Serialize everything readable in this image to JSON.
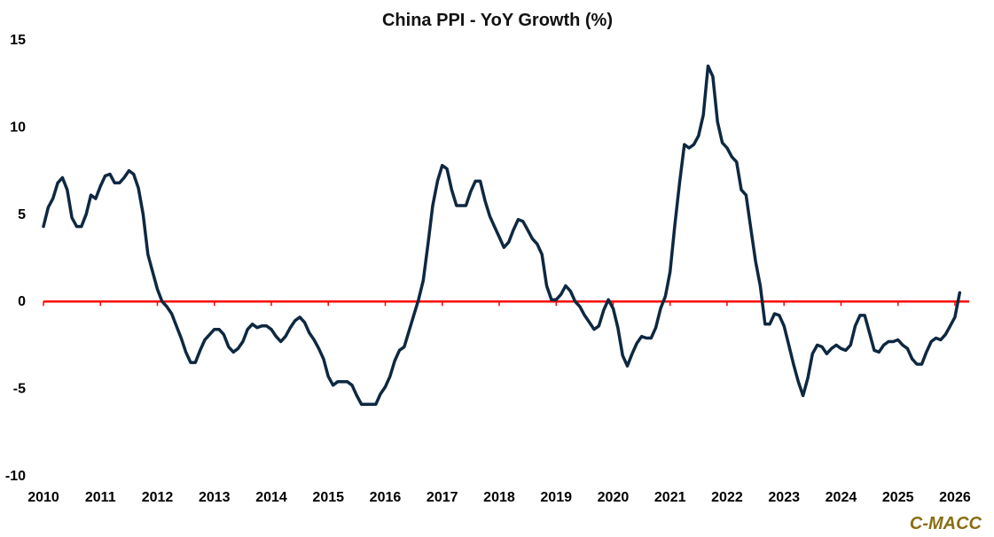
{
  "colors": {
    "series": "#0e2841",
    "zero_line": "#ff0000",
    "axis_tick": "#888888",
    "watermark": "#8a6d12"
  },
  "watermark": "C-MACC",
  "chart_data": {
    "type": "line",
    "title": "China PPI - YoY Growth (%)",
    "xlabel": "",
    "ylabel": "",
    "ylim": [
      -10,
      15
    ],
    "xlim": [
      2010.0,
      2026.25
    ],
    "y_ticks": [
      15,
      10,
      5,
      0,
      -5,
      -10
    ],
    "y_tick_labels": [
      "15",
      "10",
      "5",
      "0",
      "-5",
      "-10"
    ],
    "x_tick_labels": [
      "2010",
      "2011",
      "2012",
      "2013",
      "2014",
      "2015",
      "2016",
      "2017",
      "2018",
      "2019",
      "2020",
      "2021",
      "2022",
      "2023",
      "2024",
      "2025",
      "2026"
    ],
    "reference_line": 0,
    "series": [
      {
        "name": "China PPI YoY (%)",
        "start": 2010.0,
        "step": 0.083333,
        "values": [
          4.3,
          5.4,
          5.9,
          6.8,
          7.1,
          6.4,
          4.8,
          4.3,
          4.3,
          5.0,
          6.1,
          5.9,
          6.6,
          7.2,
          7.3,
          6.8,
          6.8,
          7.1,
          7.5,
          7.3,
          6.5,
          5.0,
          2.7,
          1.7,
          0.7,
          0.0,
          -0.3,
          -0.7,
          -1.4,
          -2.1,
          -2.9,
          -3.5,
          -3.5,
          -2.8,
          -2.2,
          -1.9,
          -1.6,
          -1.6,
          -1.9,
          -2.6,
          -2.9,
          -2.7,
          -2.3,
          -1.6,
          -1.3,
          -1.5,
          -1.4,
          -1.4,
          -1.6,
          -2.0,
          -2.3,
          -2.0,
          -1.5,
          -1.1,
          -0.9,
          -1.2,
          -1.8,
          -2.2,
          -2.7,
          -3.3,
          -4.3,
          -4.8,
          -4.6,
          -4.6,
          -4.6,
          -4.8,
          -5.4,
          -5.9,
          -5.9,
          -5.9,
          -5.9,
          -5.3,
          -4.9,
          -4.3,
          -3.4,
          -2.8,
          -2.6,
          -1.7,
          -0.8,
          0.1,
          1.2,
          3.3,
          5.5,
          6.9,
          7.8,
          7.6,
          6.4,
          5.5,
          5.5,
          5.5,
          6.3,
          6.9,
          6.9,
          5.8,
          4.9,
          4.3,
          3.7,
          3.1,
          3.4,
          4.1,
          4.7,
          4.6,
          4.1,
          3.6,
          3.3,
          2.7,
          0.9,
          0.1,
          0.1,
          0.4,
          0.9,
          0.6,
          0.0,
          -0.3,
          -0.8,
          -1.2,
          -1.6,
          -1.4,
          -0.5,
          0.1,
          -0.4,
          -1.5,
          -3.1,
          -3.7,
          -3.0,
          -2.4,
          -2.0,
          -2.1,
          -2.1,
          -1.5,
          -0.4,
          0.3,
          1.7,
          4.4,
          6.8,
          9.0,
          8.8,
          9.0,
          9.5,
          10.7,
          13.5,
          12.9,
          10.3,
          9.1,
          8.8,
          8.3,
          8.0,
          6.4,
          6.1,
          4.2,
          2.3,
          0.9,
          -1.3,
          -1.3,
          -0.7,
          -0.8,
          -1.4,
          -2.5,
          -3.6,
          -4.6,
          -5.4,
          -4.4,
          -3.0,
          -2.5,
          -2.6,
          -3.0,
          -2.7,
          -2.5,
          -2.7,
          -2.8,
          -2.5,
          -1.4,
          -0.8,
          -0.8,
          -1.8,
          -2.8,
          -2.9,
          -2.5,
          -2.3,
          -2.3,
          -2.2,
          -2.5,
          -2.7,
          -3.3,
          -3.6,
          -3.6,
          -2.9,
          -2.3,
          -2.1,
          -2.2,
          -1.9,
          -1.4,
          -0.9,
          0.5
        ]
      }
    ]
  }
}
